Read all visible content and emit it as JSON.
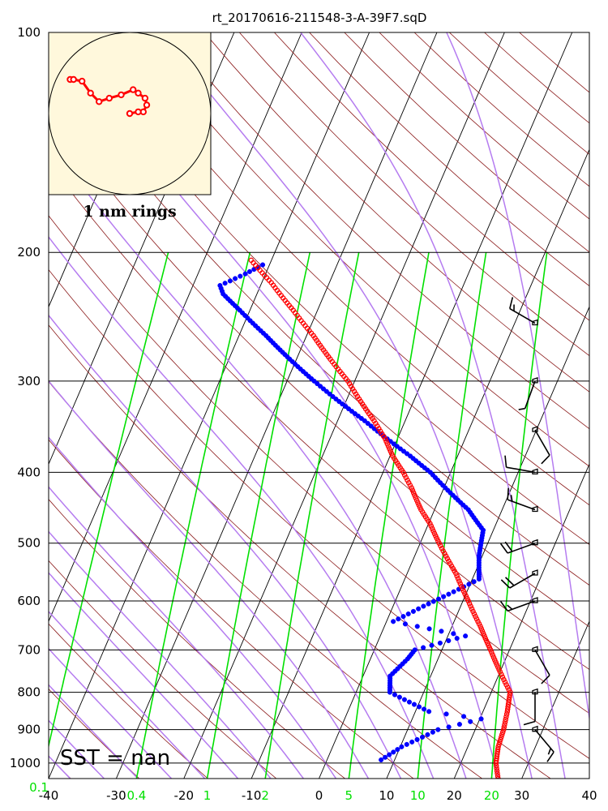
{
  "title": "rt_20170616-211548-3-A-39F7.sqD",
  "sst_label": "SST =  nan",
  "hodograph_label": "1 nm rings",
  "chart_data": {
    "type": "scatter",
    "subtype": "skew-t log-p sounding",
    "y_axis": {
      "label": "",
      "scale": "log",
      "range": [
        1050,
        100
      ],
      "ticks": [
        100,
        200,
        300,
        400,
        500,
        600,
        700,
        800,
        900,
        1000
      ]
    },
    "x_axis": {
      "label": "",
      "range": [
        -40,
        40
      ],
      "ticks": [
        -40,
        -30,
        -20,
        -10,
        0,
        10,
        20,
        30,
        40
      ]
    },
    "mixing_ratio_labels": [
      "0.1",
      "0.4",
      "1",
      "2",
      "5",
      "10",
      "20"
    ],
    "mixing_ratio_values": [
      0.1,
      0.4,
      1,
      2,
      5,
      10,
      20
    ],
    "colors": {
      "temperature": "#ff0000",
      "dewpoint": "#0000ff",
      "dry_adiabat": "#8b1a1a",
      "moist_adiabat": "#b57cf0",
      "mixing_ratio": "#00e000",
      "isotherm": "#000000",
      "hodograph_bg": "#fff8dc"
    },
    "series": [
      {
        "name": "",
        "kind": "temperature",
        "points": [
          [
            1050,
            26.5
          ],
          [
            1000,
            25.2
          ],
          [
            950,
            24.5
          ],
          [
            900,
            24.2
          ],
          [
            850,
            23.6
          ],
          [
            800,
            22.8
          ],
          [
            750,
            20.0
          ],
          [
            700,
            17.2
          ],
          [
            650,
            14.2
          ],
          [
            600,
            10.8
          ],
          [
            550,
            7.2
          ],
          [
            500,
            2.8
          ],
          [
            470,
            0.2
          ],
          [
            450,
            -2.0
          ],
          [
            420,
            -4.8
          ],
          [
            400,
            -7.0
          ],
          [
            380,
            -9.6
          ],
          [
            360,
            -11.8
          ],
          [
            340,
            -14.6
          ],
          [
            320,
            -17.8
          ],
          [
            300,
            -21.0
          ],
          [
            280,
            -25.0
          ],
          [
            260,
            -29.0
          ],
          [
            240,
            -33.6
          ],
          [
            220,
            -38.6
          ],
          [
            205,
            -43.0
          ]
        ]
      },
      {
        "name": "",
        "kind": "dewpoint",
        "points": [
          [
            990,
            8.0
          ],
          [
            950,
            10.2
          ],
          [
            900,
            14.5
          ],
          [
            870,
            20.2
          ],
          [
            850,
            12.0
          ],
          [
            800,
            5.0
          ],
          [
            760,
            4.0
          ],
          [
            720,
            5.5
          ],
          [
            700,
            6.0
          ],
          [
            670,
            12.6
          ],
          [
            640,
            1.0
          ],
          [
            610,
            4.5
          ],
          [
            560,
            11.0
          ],
          [
            520,
            9.5
          ],
          [
            480,
            8.5
          ],
          [
            450,
            5.0
          ],
          [
            420,
            0.2
          ],
          [
            400,
            -3.0
          ],
          [
            380,
            -7.0
          ],
          [
            360,
            -11.5
          ],
          [
            340,
            -16.0
          ],
          [
            320,
            -21.0
          ],
          [
            300,
            -26.0
          ],
          [
            280,
            -31.0
          ],
          [
            260,
            -36.0
          ],
          [
            240,
            -41.5
          ],
          [
            228,
            -45.0
          ],
          [
            222,
            -46.0
          ],
          [
            214,
            -43.0
          ],
          [
            208,
            -41.0
          ]
        ]
      }
    ],
    "wind_barbs": [
      {
        "pressure": 250,
        "speed_kt": 15,
        "direction_deg": 300
      },
      {
        "pressure": 300,
        "speed_kt": 5,
        "direction_deg": 200
      },
      {
        "pressure": 350,
        "speed_kt": 10,
        "direction_deg": 150
      },
      {
        "pressure": 400,
        "speed_kt": 10,
        "direction_deg": 280
      },
      {
        "pressure": 450,
        "speed_kt": 15,
        "direction_deg": 290
      },
      {
        "pressure": 500,
        "speed_kt": 20,
        "direction_deg": 250
      },
      {
        "pressure": 550,
        "speed_kt": 20,
        "direction_deg": 240
      },
      {
        "pressure": 600,
        "speed_kt": 15,
        "direction_deg": 250
      },
      {
        "pressure": 700,
        "speed_kt": 10,
        "direction_deg": 150
      },
      {
        "pressure": 800,
        "speed_kt": 10,
        "direction_deg": 180
      },
      {
        "pressure": 900,
        "speed_kt": 15,
        "direction_deg": 140
      }
    ],
    "hodograph_points": [
      [
        -35,
        20
      ],
      [
        -33,
        20
      ],
      [
        -28,
        19
      ],
      [
        -23,
        12
      ],
      [
        -18,
        7
      ],
      [
        -12,
        9
      ],
      [
        -5,
        11
      ],
      [
        2,
        14
      ],
      [
        5,
        12
      ],
      [
        9,
        9
      ],
      [
        10,
        5
      ],
      [
        8,
        1
      ],
      [
        5,
        1
      ],
      [
        0,
        0
      ]
    ]
  }
}
